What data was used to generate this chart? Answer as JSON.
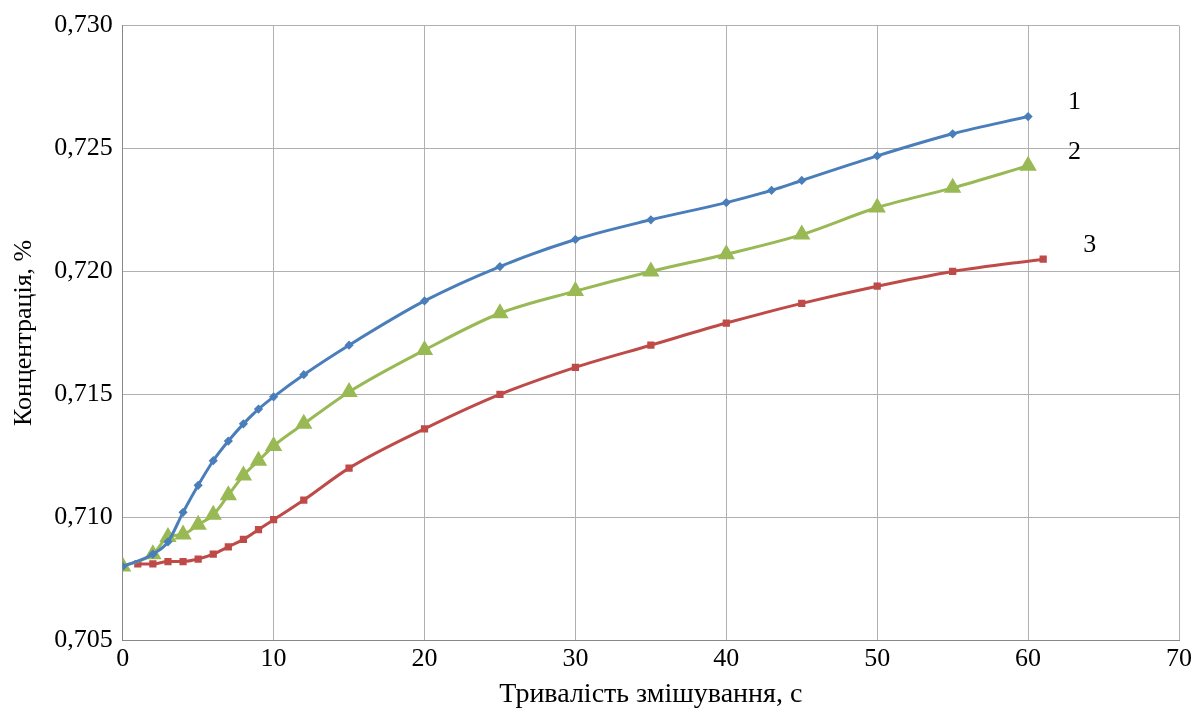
{
  "chart_data": {
    "type": "line",
    "xlabel": "Тривалість змішування, с",
    "ylabel": "Концентрація, %",
    "xlim": [
      0,
      70
    ],
    "xticks": [
      0,
      10,
      20,
      30,
      40,
      50,
      60,
      70
    ],
    "ylim": [
      0.705,
      0.73
    ],
    "yticks": [
      {
        "value": 0.705,
        "label": "0,705"
      },
      {
        "value": 0.71,
        "label": "0,710"
      },
      {
        "value": 0.715,
        "label": "0,715"
      },
      {
        "value": 0.72,
        "label": "0,720"
      },
      {
        "value": 0.725,
        "label": "0,725"
      },
      {
        "value": 0.73,
        "label": "0,730"
      }
    ],
    "grid": true,
    "legend": false,
    "line_style": "solid",
    "series": [
      {
        "name": "1",
        "color": "#4a7ebb",
        "marker": "diamond",
        "x": [
          0,
          2,
          3,
          4,
          5,
          6,
          7,
          8,
          9,
          10,
          12,
          15,
          20,
          25,
          30,
          35,
          40,
          43,
          45,
          50,
          55,
          60
        ],
        "values": [
          0.708,
          0.7085,
          0.709,
          0.7102,
          0.7113,
          0.7123,
          0.7131,
          0.7138,
          0.7144,
          0.7149,
          0.7158,
          0.717,
          0.7188,
          0.7202,
          0.7213,
          0.7221,
          0.7228,
          0.7233,
          0.7237,
          0.7247,
          0.7256,
          0.7263
        ]
      },
      {
        "name": "2",
        "color": "#98b954",
        "marker": "triangle",
        "x": [
          0,
          2,
          3,
          4,
          5,
          6,
          7,
          8,
          9,
          10,
          12,
          15,
          20,
          25,
          30,
          35,
          40,
          45,
          50,
          55,
          60
        ],
        "values": [
          0.708,
          0.7085,
          0.7092,
          0.7093,
          0.7097,
          0.7101,
          0.7109,
          0.7117,
          0.7123,
          0.7129,
          0.7138,
          0.7151,
          0.7168,
          0.7183,
          0.7192,
          0.72,
          0.7207,
          0.7215,
          0.7226,
          0.7234,
          0.7243
        ]
      },
      {
        "name": "3",
        "color": "#be4b48",
        "marker": "square",
        "x": [
          1,
          2,
          3,
          4,
          5,
          6,
          7,
          8,
          9,
          10,
          12,
          15,
          20,
          25,
          30,
          35,
          40,
          45,
          50,
          55,
          61
        ],
        "values": [
          0.7081,
          0.7081,
          0.7082,
          0.7082,
          0.7083,
          0.7085,
          0.7088,
          0.7091,
          0.7095,
          0.7099,
          0.7107,
          0.712,
          0.7136,
          0.715,
          0.7161,
          0.717,
          0.7179,
          0.7187,
          0.7194,
          0.72,
          0.7205
        ]
      }
    ]
  }
}
